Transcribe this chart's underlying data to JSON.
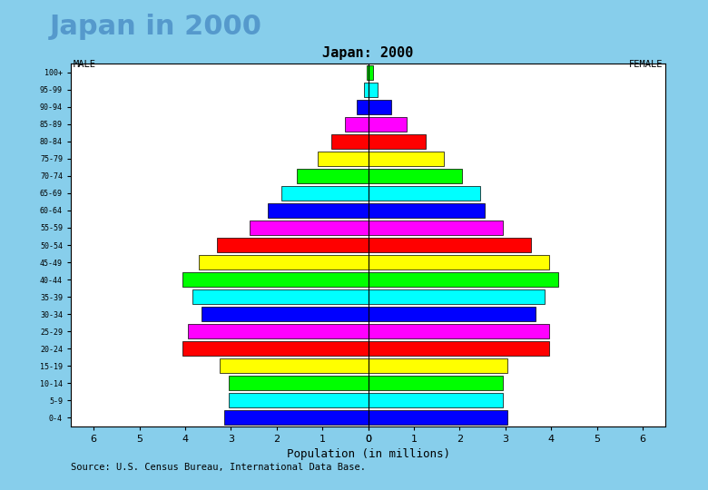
{
  "title_main": "Japan in 2000",
  "chart_title": "Japan: 2000",
  "xlabel": "Population (in millions)",
  "source": "Source: U.S. Census Bureau, International Data Base.",
  "male_label": "MALE",
  "female_label": "FEMALE",
  "age_groups": [
    "100+",
    "95-99",
    "90-94",
    "85-89",
    "80-84",
    "75-79",
    "70-74",
    "65-69",
    "60-64",
    "55-59",
    "50-54",
    "45-49",
    "40-44",
    "35-39",
    "30-34",
    "25-29",
    "20-24",
    "15-19",
    "10-14",
    "5-9",
    "0-4"
  ],
  "male_values": [
    0.04,
    0.09,
    0.25,
    0.5,
    0.8,
    1.1,
    1.55,
    1.9,
    2.2,
    2.6,
    3.3,
    3.7,
    4.05,
    3.85,
    3.65,
    3.95,
    4.05,
    3.25,
    3.05,
    3.05,
    3.15
  ],
  "female_values": [
    0.1,
    0.2,
    0.5,
    0.85,
    1.25,
    1.65,
    2.05,
    2.45,
    2.55,
    2.95,
    3.55,
    3.95,
    4.15,
    3.85,
    3.65,
    3.95,
    3.95,
    3.05,
    2.95,
    2.95,
    3.05
  ],
  "bar_colors_cycle": [
    "#0000FF",
    "#00FFFF",
    "#00FF00",
    "#FFFF00",
    "#FF0000",
    "#FF00FF"
  ],
  "outer_bg": "#87CEEB",
  "xlim": 6.5,
  "title_color": "#5599CC",
  "title_fontsize": 22
}
